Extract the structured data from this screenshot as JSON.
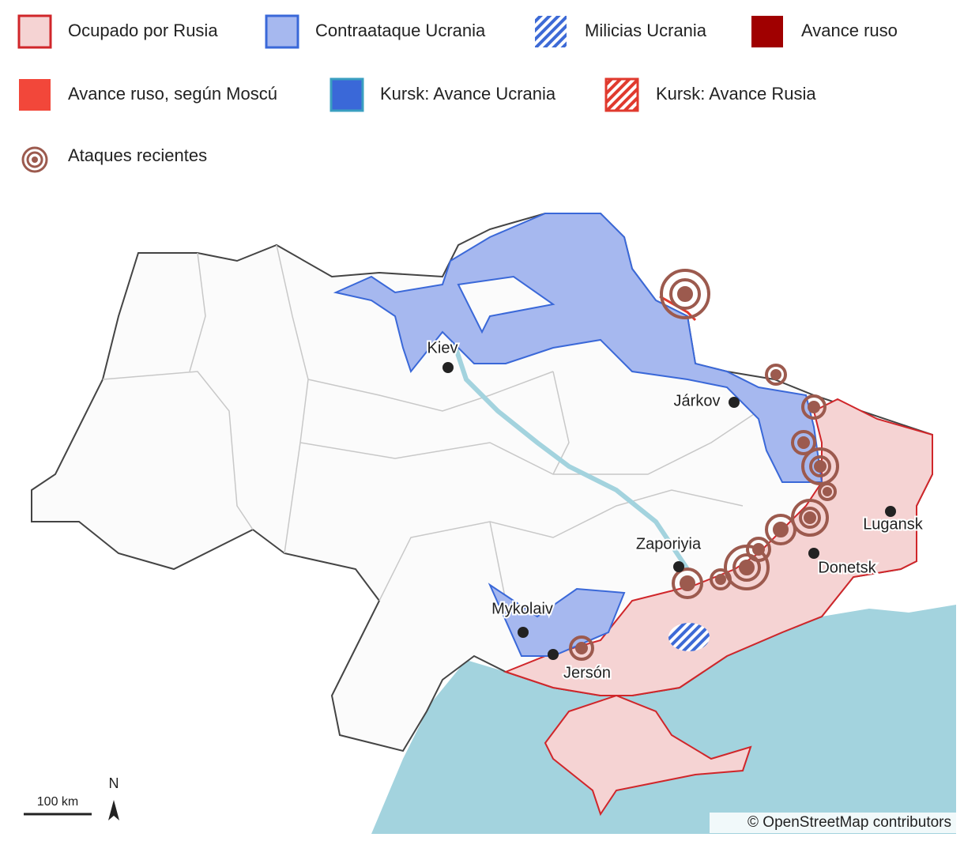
{
  "legend": [
    {
      "label": "Ocupado por Rusia"
    },
    {
      "label": "Contraataque Ucrania"
    },
    {
      "label": "Milicias Ucrania"
    },
    {
      "label": "Avance ruso"
    },
    {
      "label": "Avance ruso, según Moscú"
    },
    {
      "label": "Kursk: Avance Ucrania"
    },
    {
      "label": "Kursk: Avance Rusia"
    },
    {
      "label": "Ataques recientes"
    }
  ],
  "cities": [
    {
      "name": "Kiev"
    },
    {
      "name": "Járkov"
    },
    {
      "name": "Zaporiyia"
    },
    {
      "name": "Mykolaiv"
    },
    {
      "name": "Jersón"
    },
    {
      "name": "Donetsk"
    },
    {
      "name": "Lugansk"
    }
  ],
  "scale_bar": {
    "label": "100 km"
  },
  "north_arrow": {
    "label": "N"
  },
  "attribution": "© OpenStreetMap contributors"
}
